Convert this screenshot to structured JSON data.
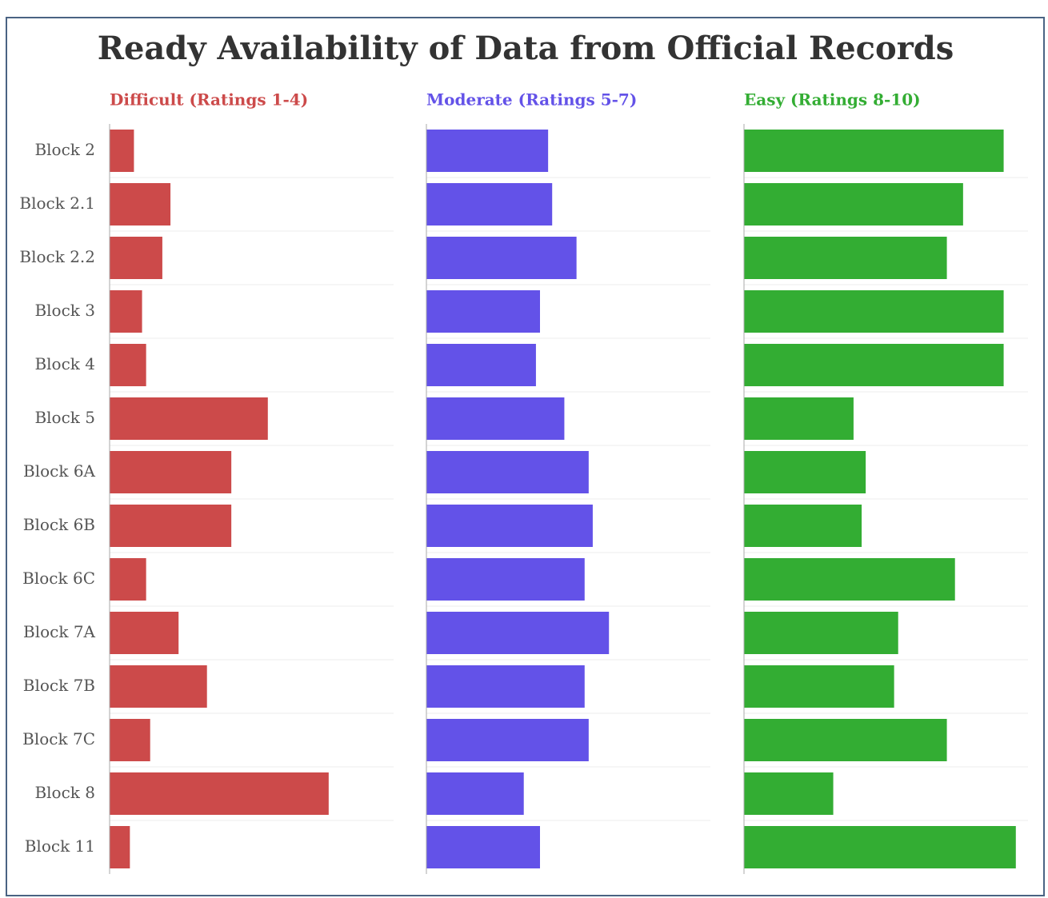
{
  "chart_data": {
    "type": "bar",
    "orientation": "horizontal",
    "layout": "panels",
    "title": "Ready Availability of Data from Official Records",
    "categories": [
      "Block 2",
      "Block 2.1",
      "Block 2.2",
      "Block 3",
      "Block 4",
      "Block 5",
      "Block 6A",
      "Block 6B",
      "Block 6C",
      "Block 7A",
      "Block 7B",
      "Block 7C",
      "Block 8",
      "Block 11"
    ],
    "series": [
      {
        "name": "Difficult (Ratings 1-4)",
        "color": "#cc4a4a",
        "values": [
          6,
          15,
          13,
          8,
          9,
          39,
          30,
          30,
          9,
          17,
          24,
          10,
          54,
          5
        ]
      },
      {
        "name": "Moderate (Ratings 5-7)",
        "color": "#6352e8",
        "values": [
          30,
          31,
          37,
          28,
          27,
          34,
          40,
          41,
          39,
          45,
          39,
          40,
          24,
          28
        ]
      },
      {
        "name": "Easy (Ratings 8-10)",
        "color": "#33ad33",
        "values": [
          64,
          54,
          50,
          64,
          64,
          27,
          30,
          29,
          52,
          38,
          37,
          50,
          22,
          67
        ]
      }
    ],
    "xlim": [
      0,
      70
    ],
    "grid": true
  }
}
